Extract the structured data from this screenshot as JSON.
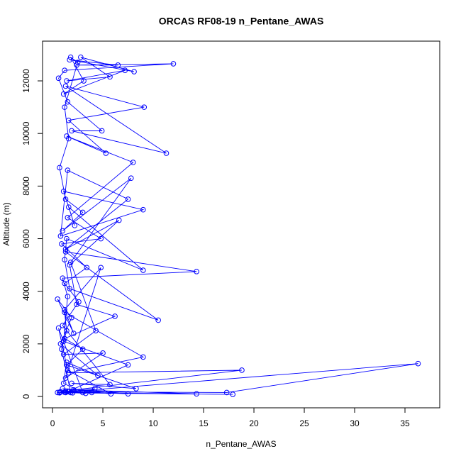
{
  "chart_data": {
    "type": "line",
    "title": "ORCAS RF08-19 n_Pentane_AWAS",
    "x_label": "n_Pentane_AWAS",
    "y_label": "Altitude (m)",
    "color": "blue",
    "markers": true,
    "xlim": [
      -0.99,
      38.45
    ],
    "ylim": [
      -431,
      13511
    ],
    "xticks": [
      0,
      5,
      10,
      15,
      20,
      25,
      30,
      35
    ],
    "yticks": [
      0,
      2000,
      4000,
      6000,
      8000,
      10000,
      12000
    ],
    "x": [
      0.5,
      1.2,
      2.0,
      3.3,
      4.2,
      1.5,
      0.8,
      17.3,
      36.3,
      1.6,
      0.7,
      17.9,
      1.8,
      0.9,
      1.4,
      1.2,
      9.0,
      1.6,
      18.8,
      2.1,
      14.3,
      1.3,
      7.5,
      1.1,
      1.5,
      1.0,
      14.3,
      1.3,
      10.5,
      1.7,
      1.2,
      1.4,
      9.0,
      1.6,
      2.2,
      1.1,
      9.0,
      0.8,
      1.5,
      7.5,
      1.3,
      6.6,
      1.7,
      2.4,
      6.2,
      1.2,
      3.0,
      1.4,
      8.3,
      1.9,
      5.7,
      1.0,
      2.6,
      1.2,
      3.4,
      0.9,
      4.8,
      1.5,
      8.0,
      1.4,
      5.3,
      1.6,
      9.1,
      1.3,
      11.3,
      1.9,
      4.9,
      1.5,
      0.6,
      1.2,
      12.0,
      2.4,
      6.5,
      1.7,
      8.1,
      2.8,
      5.7,
      1.4,
      7.2,
      1.1,
      3.1,
      1.8,
      2.5,
      1.2,
      1.6,
      0.7,
      1.3,
      3.0,
      1.0,
      7.8,
      1.8,
      4.3,
      1.1,
      5.0,
      1.3,
      4.8,
      1.2,
      2.1,
      0.5,
      1.9,
      0.8,
      4.5,
      1.4,
      1.1,
      3.0,
      0.6,
      1.5,
      5.8,
      1.0,
      7.5,
      1.3,
      3.9,
      0.7
    ],
    "values": [
      150,
      160,
      140,
      120,
      300,
      200,
      180,
      150,
      1250,
      180,
      140,
      80,
      150,
      1800,
      2500,
      3200,
      1500,
      900,
      1000,
      250,
      100,
      150,
      1200,
      2100,
      3800,
      4500,
      4750,
      5500,
      2900,
      4100,
      5200,
      6000,
      4800,
      7200,
      6500,
      7800,
      7100,
      6100,
      8600,
      7500,
      5600,
      6700,
      5000,
      3500,
      3050,
      2200,
      1800,
      1200,
      300,
      500,
      450,
      2700,
      3600,
      4300,
      4900,
      5800,
      6000,
      6800,
      8900,
      9900,
      9250,
      10500,
      11000,
      11800,
      9250,
      10100,
      10100,
      11200,
      12100,
      12400,
      12650,
      12600,
      12600,
      12800,
      12350,
      12900,
      12150,
      12000,
      12400,
      11500,
      12000,
      12900,
      12700,
      11000,
      9800,
      8700,
      7500,
      7000,
      6300,
      8300,
      5100,
      2500,
      1600,
      1650,
      700,
      4900,
      3300,
      2400,
      3700,
      3000,
      2000,
      800,
      1300,
      500,
      150,
      2600,
      1000,
      100,
      300,
      100,
      200,
      150,
      160
    ]
  }
}
